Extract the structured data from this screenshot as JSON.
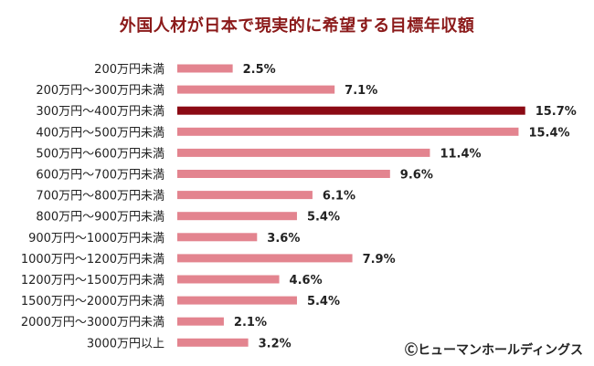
{
  "chart_data": {
    "type": "bar",
    "orientation": "horizontal",
    "title": "外国人材が日本で現実的に希望する目標年収額",
    "categories": [
      "200万円未満",
      "200万円～300万円未満",
      "300万円～400万円未満",
      "400万円～500万円未満",
      "500万円～600万円未満",
      "600万円～700万円未満",
      "700万円～800万円未満",
      "800万円～900万円未満",
      "900万円～1000万円未満",
      "1000万円～1200万円未満",
      "1200万円～1500万円未満",
      "1500万円～2000万円未満",
      "2000万円～3000万円未満",
      "3000万円以上"
    ],
    "values": [
      2.5,
      7.1,
      15.7,
      15.4,
      11.4,
      9.6,
      6.1,
      5.4,
      3.6,
      7.9,
      4.6,
      5.4,
      2.1,
      3.2
    ],
    "value_labels": [
      "2.5%",
      "7.1%",
      "15.7%",
      "15.4%",
      "11.4%",
      "9.6%",
      "6.1%",
      "5.4%",
      "3.6%",
      "7.9%",
      "4.6%",
      "5.4%",
      "2.1%",
      "3.2%"
    ],
    "xlim": [
      0,
      16
    ],
    "highlight_index": 2,
    "colors": {
      "bar": "#e3848f",
      "highlight": "#8b0a14",
      "title": "#8b1a1a"
    },
    "grid": false,
    "legend": "none"
  },
  "credit": "Ⓒヒューマンホールディングス"
}
